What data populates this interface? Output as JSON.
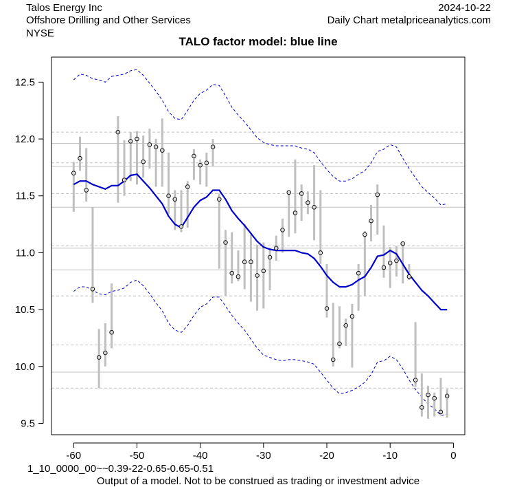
{
  "header": {
    "company": "Talos Energy Inc",
    "sector": "Offshore Drilling and Other Services",
    "exchange": "NYSE",
    "date": "2024-10-22",
    "source": "Daily Chart metalpriceanalytics.com"
  },
  "footer": {
    "model_code": "1_10_0000_00~~0.39-22-0.65-0.65-0.51",
    "disclaimer": "Output of a model. Not to be construed as trading or investment advice"
  },
  "chart_data": {
    "type": "line",
    "title": "TALO factor model: blue line",
    "xlabel": "",
    "ylabel": "",
    "xlim": [
      -63.5,
      1.8
    ],
    "ylim": [
      9.4,
      12.72
    ],
    "x_ticks": [
      -60,
      -50,
      -40,
      -30,
      -20,
      -10,
      0
    ],
    "y_ticks": [
      9.5,
      10.0,
      10.5,
      11.0,
      11.5,
      12.0,
      12.5
    ],
    "grid": "horizontal reference lines only",
    "colors": {
      "model": "#0000cc",
      "band": "#0000cc",
      "range": "#bfbfbf",
      "hline": "#c0c0c0"
    },
    "hlines_solid": [
      11.96,
      11.76,
      11.4,
      11.04,
      10.85,
      9.95
    ],
    "hlines_dashed": [
      12.06,
      11.79,
      11.52,
      11.06,
      10.62,
      10.19,
      9.81
    ],
    "model_line": {
      "x": [
        -60,
        -59,
        -58,
        -57,
        -56,
        -55,
        -54,
        -53,
        -52,
        -51,
        -50,
        -49,
        -48,
        -47,
        -46,
        -45,
        -44,
        -43,
        -42,
        -41,
        -40,
        -39,
        -38,
        -37,
        -36,
        -35,
        -34,
        -33,
        -32,
        -31,
        -30,
        -29,
        -28,
        -27,
        -26,
        -25,
        -24,
        -23,
        -22,
        -21,
        -20,
        -19,
        -18,
        -17,
        -16,
        -15,
        -14,
        -13,
        -12,
        -11,
        -10,
        -9,
        -8,
        -7,
        -6,
        -5,
        -4,
        -3,
        -2,
        -1
      ],
      "y": [
        11.6,
        11.63,
        11.63,
        11.6,
        11.58,
        11.56,
        11.59,
        11.59,
        11.63,
        11.68,
        11.69,
        11.63,
        11.57,
        11.5,
        11.43,
        11.32,
        11.25,
        11.22,
        11.31,
        11.4,
        11.46,
        11.49,
        11.55,
        11.55,
        11.47,
        11.37,
        11.3,
        11.24,
        11.17,
        11.1,
        11.05,
        11.03,
        11.02,
        11.02,
        11.02,
        11.02,
        11.0,
        10.99,
        10.95,
        10.88,
        10.8,
        10.74,
        10.7,
        10.7,
        10.72,
        10.76,
        10.79,
        10.87,
        10.97,
        10.98,
        11.02,
        10.99,
        10.9,
        10.81,
        10.74,
        10.67,
        10.62,
        10.56,
        10.5,
        10.5
      ]
    },
    "upper_band": {
      "x": [
        -60,
        -59,
        -58,
        -57,
        -56,
        -55,
        -54,
        -53,
        -52,
        -51,
        -50,
        -49,
        -48,
        -47,
        -46,
        -45,
        -44,
        -43,
        -42,
        -41,
        -40,
        -39,
        -38,
        -37,
        -36,
        -35,
        -34,
        -33,
        -32,
        -31,
        -30,
        -29,
        -28,
        -27,
        -26,
        -25,
        -24,
        -23,
        -22,
        -21,
        -20,
        -19,
        -18,
        -17,
        -16,
        -15,
        -14,
        -13,
        -12,
        -11,
        -10,
        -9,
        -8,
        -7,
        -6,
        -5,
        -4,
        -3,
        -2,
        -1
      ],
      "y": [
        12.52,
        12.57,
        12.56,
        12.53,
        12.52,
        12.5,
        12.55,
        12.56,
        12.57,
        12.6,
        12.61,
        12.56,
        12.49,
        12.42,
        12.34,
        12.24,
        12.18,
        12.17,
        12.25,
        12.34,
        12.4,
        12.43,
        12.48,
        12.47,
        12.38,
        12.28,
        12.21,
        12.15,
        12.08,
        12.01,
        11.97,
        11.95,
        11.94,
        11.94,
        11.94,
        11.94,
        11.92,
        11.91,
        11.88,
        11.8,
        11.73,
        11.67,
        11.63,
        11.63,
        11.65,
        11.69,
        11.72,
        11.79,
        11.89,
        11.91,
        11.95,
        11.93,
        11.83,
        11.74,
        11.66,
        11.58,
        11.53,
        11.48,
        11.42,
        11.43
      ]
    },
    "lower_band": {
      "x": [
        -60,
        -59,
        -58,
        -57,
        -56,
        -55,
        -54,
        -53,
        -52,
        -51,
        -50,
        -49,
        -48,
        -47,
        -46,
        -45,
        -44,
        -43,
        -42,
        -41,
        -40,
        -39,
        -38,
        -37,
        -36,
        -35,
        -34,
        -33,
        -32,
        -31,
        -30,
        -29,
        -28,
        -27,
        -26,
        -25,
        -24,
        -23,
        -22,
        -21,
        -20,
        -19,
        -18,
        -17,
        -16,
        -15,
        -14,
        -13,
        -12,
        -11,
        -10,
        -9,
        -8,
        -7,
        -6,
        -5,
        -4,
        -3,
        -2,
        -1
      ],
      "y": [
        10.66,
        10.7,
        10.7,
        10.67,
        10.64,
        10.63,
        10.66,
        10.67,
        10.69,
        10.74,
        10.76,
        10.71,
        10.64,
        10.56,
        10.49,
        10.38,
        10.32,
        10.3,
        10.36,
        10.45,
        10.52,
        10.55,
        10.61,
        10.61,
        10.53,
        10.45,
        10.38,
        10.32,
        10.24,
        10.16,
        10.1,
        10.08,
        10.06,
        10.05,
        10.06,
        10.06,
        10.05,
        10.04,
        10.02,
        9.95,
        9.88,
        9.81,
        9.76,
        9.77,
        9.79,
        9.82,
        9.86,
        9.93,
        10.04,
        10.05,
        10.09,
        10.06,
        9.98,
        9.88,
        9.8,
        9.73,
        9.67,
        9.63,
        9.57,
        9.58
      ]
    },
    "observations": [
      {
        "x": -60,
        "y": 11.7,
        "high": 11.8,
        "low": 11.36
      },
      {
        "x": -59,
        "y": 11.83,
        "high": 12.02,
        "low": 11.72
      },
      {
        "x": -58,
        "y": 11.55,
        "high": 11.92,
        "low": 11.45
      },
      {
        "x": -57,
        "y": 10.68,
        "high": 11.4,
        "low": 10.56
      },
      {
        "x": -56,
        "y": 10.08,
        "high": 10.33,
        "low": 9.81
      },
      {
        "x": -55,
        "y": 10.12,
        "high": 10.38,
        "low": 10.0
      },
      {
        "x": -54,
        "y": 10.3,
        "high": 10.73,
        "low": 10.16
      },
      {
        "x": -53,
        "y": 12.06,
        "high": 12.2,
        "low": 11.44
      },
      {
        "x": -52,
        "y": 11.64,
        "high": 11.99,
        "low": 11.5
      },
      {
        "x": -51,
        "y": 11.98,
        "high": 12.06,
        "low": 11.63
      },
      {
        "x": -50,
        "y": 12.0,
        "high": 12.07,
        "low": 11.6
      },
      {
        "x": -49,
        "y": 11.8,
        "high": 12.03,
        "low": 11.66
      },
      {
        "x": -48,
        "y": 11.95,
        "high": 12.09,
        "low": 11.74
      },
      {
        "x": -47,
        "y": 11.93,
        "high": 12.0,
        "low": 11.58
      },
      {
        "x": -46,
        "y": 11.9,
        "high": 12.18,
        "low": 11.58
      },
      {
        "x": -45,
        "y": 11.5,
        "high": 11.88,
        "low": 11.34
      },
      {
        "x": -44,
        "y": 11.47,
        "high": 11.55,
        "low": 11.2
      },
      {
        "x": -43,
        "y": 11.23,
        "high": 11.55,
        "low": 11.18
      },
      {
        "x": -42,
        "y": 11.58,
        "high": 11.63,
        "low": 11.22
      },
      {
        "x": -41,
        "y": 11.85,
        "high": 11.91,
        "low": 11.64
      },
      {
        "x": -40,
        "y": 11.77,
        "high": 11.82,
        "low": 11.6
      },
      {
        "x": -39,
        "y": 11.79,
        "high": 11.88,
        "low": 11.58
      },
      {
        "x": -38,
        "y": 11.93,
        "high": 12.0,
        "low": 11.76
      },
      {
        "x": -37,
        "y": 11.47,
        "high": 11.52,
        "low": 10.86
      },
      {
        "x": -36,
        "y": 11.09,
        "high": 11.2,
        "low": 10.62
      },
      {
        "x": -35,
        "y": 10.82,
        "high": 11.18,
        "low": 10.73
      },
      {
        "x": -34,
        "y": 10.79,
        "high": 11.02,
        "low": 10.75
      },
      {
        "x": -33,
        "y": 10.92,
        "high": 11.25,
        "low": 10.68
      },
      {
        "x": -32,
        "y": 10.92,
        "high": 11.16,
        "low": 10.57
      },
      {
        "x": -31,
        "y": 10.8,
        "high": 11.07,
        "low": 10.49
      },
      {
        "x": -30,
        "y": 10.84,
        "high": 11.09,
        "low": 10.51
      },
      {
        "x": -29,
        "y": 10.96,
        "high": 11.04,
        "low": 10.67
      },
      {
        "x": -28,
        "y": 11.04,
        "high": 11.15,
        "low": 10.93
      },
      {
        "x": -27,
        "y": 11.2,
        "high": 11.3,
        "low": 11.0
      },
      {
        "x": -26,
        "y": 11.53,
        "high": 11.55,
        "low": 11.14
      },
      {
        "x": -25,
        "y": 11.35,
        "high": 11.82,
        "low": 11.17
      },
      {
        "x": -24,
        "y": 11.52,
        "high": 11.6,
        "low": 11.28
      },
      {
        "x": -23,
        "y": 11.44,
        "high": 11.54,
        "low": 11.34
      },
      {
        "x": -22,
        "y": 11.4,
        "high": 11.77,
        "low": 11.11
      },
      {
        "x": -21,
        "y": 11.0,
        "high": 11.55,
        "low": 10.9
      },
      {
        "x": -20,
        "y": 10.51,
        "high": 10.9,
        "low": 10.43
      },
      {
        "x": -19,
        "y": 10.06,
        "high": 10.56,
        "low": 10.0
      },
      {
        "x": -18,
        "y": 10.2,
        "high": 10.53,
        "low": 10.16
      },
      {
        "x": -17,
        "y": 10.36,
        "high": 10.42,
        "low": 10.18
      },
      {
        "x": -16,
        "y": 10.44,
        "high": 10.55,
        "low": 9.99
      },
      {
        "x": -15,
        "y": 10.82,
        "high": 10.9,
        "low": 10.49
      },
      {
        "x": -14,
        "y": 11.16,
        "high": 11.19,
        "low": 10.62
      },
      {
        "x": -13,
        "y": 11.28,
        "high": 11.42,
        "low": 11.1
      },
      {
        "x": -12,
        "y": 11.51,
        "high": 11.6,
        "low": 11.16
      },
      {
        "x": -11,
        "y": 10.87,
        "high": 11.24,
        "low": 10.78
      },
      {
        "x": -10,
        "y": 10.91,
        "high": 11.05,
        "low": 10.69
      },
      {
        "x": -9,
        "y": 10.93,
        "high": 11.06,
        "low": 10.79
      },
      {
        "x": -8,
        "y": 11.08,
        "high": 11.1,
        "low": 10.73
      },
      {
        "x": -7,
        "y": 10.79,
        "high": 10.9,
        "low": 10.76
      },
      {
        "x": -6,
        "y": 9.88,
        "high": 10.39,
        "low": 9.82
      },
      {
        "x": -5,
        "y": 9.64,
        "high": 9.94,
        "low": 9.56
      },
      {
        "x": -4,
        "y": 9.75,
        "high": 9.83,
        "low": 9.54
      },
      {
        "x": -3,
        "y": 9.72,
        "high": 9.77,
        "low": 9.56
      },
      {
        "x": -2,
        "y": 9.6,
        "high": 9.9,
        "low": 9.57
      },
      {
        "x": -1,
        "y": 9.74,
        "high": 9.8,
        "low": 9.55
      }
    ]
  }
}
